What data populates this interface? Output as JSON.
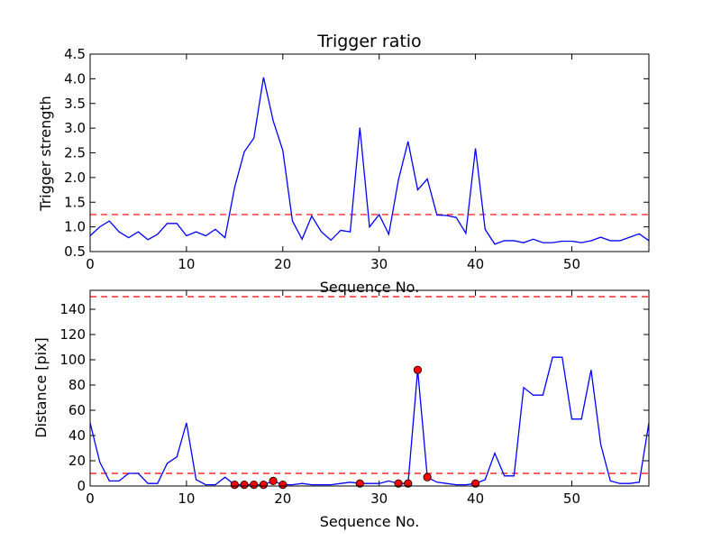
{
  "chart_data": [
    {
      "type": "line",
      "title": "Trigger ratio",
      "xlabel": "Sequence No.",
      "ylabel": "Trigger strength",
      "xlim": [
        0,
        58
      ],
      "ylim": [
        0.5,
        4.5
      ],
      "xticks": [
        0,
        10,
        20,
        30,
        40,
        50
      ],
      "yticks": [
        0.5,
        1.0,
        1.5,
        2.0,
        2.5,
        3.0,
        3.5,
        4.0,
        4.5
      ],
      "ytick_decimals": 1,
      "threshold": 1.25,
      "threshold_color": "#ff0000",
      "line_color": "#0000ff",
      "x": [
        0,
        1,
        2,
        3,
        4,
        5,
        6,
        7,
        8,
        9,
        10,
        11,
        12,
        13,
        14,
        15,
        16,
        17,
        18,
        19,
        20,
        21,
        22,
        23,
        24,
        25,
        26,
        27,
        28,
        29,
        30,
        31,
        32,
        33,
        34,
        35,
        36,
        37,
        38,
        39,
        40,
        41,
        42,
        43,
        44,
        45,
        46,
        47,
        48,
        49,
        50,
        51,
        52,
        53,
        54,
        55,
        56,
        57,
        58
      ],
      "y": [
        0.82,
        1.0,
        1.12,
        0.9,
        0.78,
        0.9,
        0.74,
        0.85,
        1.07,
        1.07,
        0.82,
        0.9,
        0.82,
        0.95,
        0.78,
        1.8,
        2.52,
        2.8,
        4.03,
        3.15,
        2.55,
        1.12,
        0.75,
        1.22,
        0.9,
        0.73,
        0.93,
        0.9,
        3.01,
        1.0,
        1.25,
        0.85,
        1.95,
        2.73,
        1.75,
        1.97,
        1.24,
        1.23,
        1.19,
        0.87,
        2.59,
        0.95,
        0.65,
        0.72,
        0.72,
        0.68,
        0.75,
        0.68,
        0.68,
        0.71,
        0.71,
        0.68,
        0.72,
        0.79,
        0.72,
        0.72,
        0.79,
        0.86,
        0.72
      ]
    },
    {
      "type": "line",
      "title": "",
      "xlabel": "Sequence No.",
      "ylabel": "Distance [pix]",
      "xlim": [
        0,
        58
      ],
      "ylim": [
        0,
        155
      ],
      "xticks": [
        0,
        10,
        20,
        30,
        40,
        50
      ],
      "yticks": [
        0,
        20,
        40,
        60,
        80,
        100,
        120,
        140
      ],
      "ytick_decimals": 0,
      "thresholds": [
        10,
        150
      ],
      "threshold_color": "#ff0000",
      "line_color": "#0000ff",
      "x": [
        0,
        1,
        2,
        3,
        4,
        5,
        6,
        7,
        8,
        9,
        10,
        11,
        12,
        13,
        14,
        15,
        16,
        17,
        18,
        19,
        20,
        21,
        22,
        23,
        24,
        25,
        26,
        27,
        28,
        29,
        30,
        31,
        32,
        33,
        34,
        35,
        36,
        37,
        38,
        39,
        40,
        41,
        42,
        43,
        44,
        45,
        46,
        47,
        48,
        49,
        50,
        51,
        52,
        53,
        54,
        55,
        56,
        57,
        58
      ],
      "y": [
        50,
        19,
        4,
        4,
        10,
        10,
        2,
        2,
        18,
        23,
        50,
        5,
        1,
        1,
        7,
        1,
        1,
        1,
        1,
        4,
        1,
        1,
        2,
        1,
        1,
        1,
        2,
        3,
        2,
        2,
        2,
        4,
        2,
        2,
        92,
        7,
        3,
        2,
        1,
        1,
        2,
        5,
        26,
        8,
        8,
        78,
        72,
        72,
        102,
        102,
        53,
        53,
        92,
        33,
        4,
        2,
        2,
        3,
        50
      ],
      "markers": {
        "color": "#ff0000",
        "x": [
          15,
          16,
          17,
          18,
          19,
          20,
          28,
          32,
          33,
          34,
          35,
          40
        ],
        "y": [
          1,
          1,
          1,
          1,
          4,
          1,
          2,
          2,
          2,
          92,
          7,
          2
        ]
      }
    }
  ]
}
